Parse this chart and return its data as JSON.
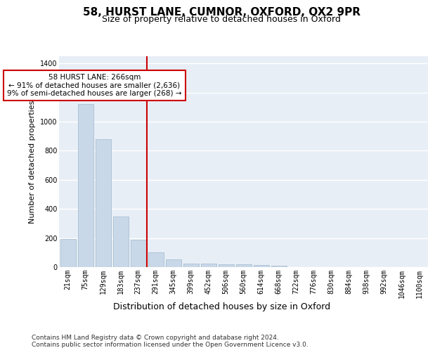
{
  "title": "58, HURST LANE, CUMNOR, OXFORD, OX2 9PR",
  "subtitle": "Size of property relative to detached houses in Oxford",
  "xlabel": "Distribution of detached houses by size in Oxford",
  "ylabel": "Number of detached properties",
  "categories": [
    "21sqm",
    "75sqm",
    "129sqm",
    "183sqm",
    "237sqm",
    "291sqm",
    "345sqm",
    "399sqm",
    "452sqm",
    "506sqm",
    "560sqm",
    "614sqm",
    "668sqm",
    "722sqm",
    "776sqm",
    "830sqm",
    "884sqm",
    "938sqm",
    "992sqm",
    "1046sqm",
    "1100sqm"
  ],
  "values": [
    195,
    1120,
    880,
    350,
    190,
    100,
    55,
    25,
    25,
    20,
    20,
    15,
    10,
    0,
    0,
    0,
    0,
    0,
    0,
    0,
    0
  ],
  "bar_color": "#c8d8e8",
  "bar_edge_color": "#a0b8cc",
  "red_line_index": 4.5,
  "annotation_text": "58 HURST LANE: 266sqm\n← 91% of detached houses are smaller (2,636)\n9% of semi-detached houses are larger (268) →",
  "annotation_box_color": "#cc0000",
  "ylim": [
    0,
    1450
  ],
  "yticks": [
    0,
    200,
    400,
    600,
    800,
    1000,
    1200,
    1400
  ],
  "background_color": "#e8eef6",
  "grid_color": "#ffffff",
  "footer_text": "Contains HM Land Registry data © Crown copyright and database right 2024.\nContains public sector information licensed under the Open Government Licence v3.0.",
  "title_fontsize": 11,
  "subtitle_fontsize": 9,
  "xlabel_fontsize": 9,
  "ylabel_fontsize": 8,
  "tick_fontsize": 7,
  "annotation_fontsize": 7.5,
  "footer_fontsize": 6.5
}
